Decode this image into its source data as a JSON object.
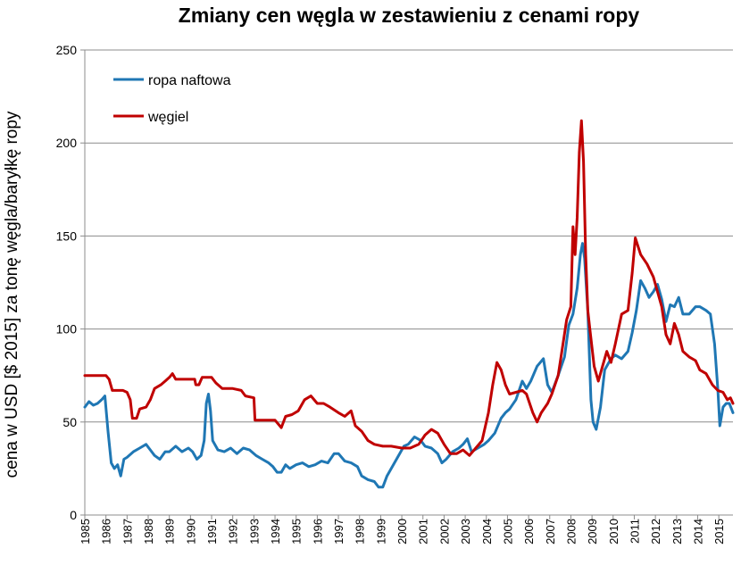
{
  "title": "Zmiany cen węgla w zestawieniu z cenami ropy",
  "chart_data": {
    "type": "line",
    "title": "Zmiany cen węgla w zestawieniu z cenami ropy",
    "xlabel": "",
    "ylabel": "cena  w USD [$ 2015]  za tonę węgla/baryłkę ropy",
    "xlim": [
      1985.0,
      2015.67
    ],
    "ylim": [
      0,
      250
    ],
    "yticks": [
      0,
      50,
      100,
      150,
      200,
      250
    ],
    "xticks": [
      "1985",
      "1986",
      "1987",
      "1988",
      "1989",
      "1990",
      "1991",
      "1992",
      "1993",
      "1994",
      "1995",
      "1996",
      "1997",
      "1998",
      "1999",
      "2000",
      "2001",
      "2002",
      "2003",
      "2004",
      "2005",
      "2006",
      "2007",
      "2008",
      "2009",
      "2010",
      "2011",
      "2012",
      "2013",
      "2014",
      "2015"
    ],
    "grid": "horizontal",
    "legend_position": "top-left",
    "series": [
      {
        "name": "ropa naftowa",
        "color": "#1f77b4",
        "points": [
          [
            1985.0,
            58
          ],
          [
            1985.2,
            61
          ],
          [
            1985.4,
            59
          ],
          [
            1985.6,
            60
          ],
          [
            1985.8,
            62
          ],
          [
            1985.95,
            64
          ],
          [
            1986.1,
            45
          ],
          [
            1986.25,
            28
          ],
          [
            1986.4,
            25
          ],
          [
            1986.55,
            27
          ],
          [
            1986.7,
            21
          ],
          [
            1986.85,
            30
          ],
          [
            1987.0,
            31
          ],
          [
            1987.3,
            34
          ],
          [
            1987.6,
            36
          ],
          [
            1987.9,
            38
          ],
          [
            1988.1,
            35
          ],
          [
            1988.3,
            32
          ],
          [
            1988.55,
            30
          ],
          [
            1988.8,
            34
          ],
          [
            1989.0,
            34
          ],
          [
            1989.3,
            37
          ],
          [
            1989.6,
            34
          ],
          [
            1989.9,
            36
          ],
          [
            1990.1,
            34
          ],
          [
            1990.3,
            30
          ],
          [
            1990.5,
            32
          ],
          [
            1990.65,
            40
          ],
          [
            1990.75,
            60
          ],
          [
            1990.85,
            65
          ],
          [
            1990.95,
            56
          ],
          [
            1991.05,
            40
          ],
          [
            1991.3,
            35
          ],
          [
            1991.6,
            34
          ],
          [
            1991.9,
            36
          ],
          [
            1992.2,
            33
          ],
          [
            1992.5,
            36
          ],
          [
            1992.8,
            35
          ],
          [
            1993.1,
            32
          ],
          [
            1993.4,
            30
          ],
          [
            1993.7,
            28
          ],
          [
            1993.9,
            26
          ],
          [
            1994.1,
            23
          ],
          [
            1994.3,
            23
          ],
          [
            1994.5,
            27
          ],
          [
            1994.7,
            25
          ],
          [
            1995.0,
            27
          ],
          [
            1995.3,
            28
          ],
          [
            1995.6,
            26
          ],
          [
            1995.9,
            27
          ],
          [
            1996.2,
            29
          ],
          [
            1996.5,
            28
          ],
          [
            1996.8,
            33
          ],
          [
            1997.0,
            33
          ],
          [
            1997.3,
            29
          ],
          [
            1997.6,
            28
          ],
          [
            1997.9,
            26
          ],
          [
            1998.1,
            21
          ],
          [
            1998.4,
            19
          ],
          [
            1998.7,
            18
          ],
          [
            1998.9,
            15
          ],
          [
            1999.1,
            15
          ],
          [
            1999.3,
            21
          ],
          [
            1999.6,
            27
          ],
          [
            1999.9,
            33
          ],
          [
            2000.1,
            37
          ],
          [
            2000.3,
            38
          ],
          [
            2000.6,
            42
          ],
          [
            2000.9,
            40
          ],
          [
            2001.1,
            37
          ],
          [
            2001.4,
            36
          ],
          [
            2001.7,
            33
          ],
          [
            2001.9,
            28
          ],
          [
            2002.1,
            30
          ],
          [
            2002.4,
            34
          ],
          [
            2002.7,
            36
          ],
          [
            2002.9,
            38
          ],
          [
            2003.1,
            41
          ],
          [
            2003.3,
            34
          ],
          [
            2003.6,
            36
          ],
          [
            2003.9,
            38
          ],
          [
            2004.1,
            40
          ],
          [
            2004.4,
            44
          ],
          [
            2004.7,
            52
          ],
          [
            2004.9,
            55
          ],
          [
            2005.1,
            57
          ],
          [
            2005.4,
            62
          ],
          [
            2005.7,
            72
          ],
          [
            2005.9,
            68
          ],
          [
            2006.1,
            72
          ],
          [
            2006.4,
            80
          ],
          [
            2006.7,
            84
          ],
          [
            2006.9,
            70
          ],
          [
            2007.1,
            66
          ],
          [
            2007.4,
            75
          ],
          [
            2007.7,
            85
          ],
          [
            2007.9,
            102
          ],
          [
            2008.1,
            108
          ],
          [
            2008.3,
            122
          ],
          [
            2008.45,
            140
          ],
          [
            2008.55,
            146
          ],
          [
            2008.65,
            138
          ],
          [
            2008.8,
            110
          ],
          [
            2008.95,
            62
          ],
          [
            2009.05,
            50
          ],
          [
            2009.2,
            46
          ],
          [
            2009.4,
            58
          ],
          [
            2009.6,
            78
          ],
          [
            2009.9,
            84
          ],
          [
            2010.1,
            86
          ],
          [
            2010.4,
            84
          ],
          [
            2010.7,
            88
          ],
          [
            2010.9,
            98
          ],
          [
            2011.1,
            110
          ],
          [
            2011.3,
            126
          ],
          [
            2011.5,
            122
          ],
          [
            2011.7,
            117
          ],
          [
            2011.9,
            120
          ],
          [
            2012.1,
            124
          ],
          [
            2012.3,
            116
          ],
          [
            2012.5,
            104
          ],
          [
            2012.7,
            113
          ],
          [
            2012.9,
            112
          ],
          [
            2013.1,
            117
          ],
          [
            2013.3,
            108
          ],
          [
            2013.6,
            108
          ],
          [
            2013.9,
            112
          ],
          [
            2014.1,
            112
          ],
          [
            2014.4,
            110
          ],
          [
            2014.6,
            108
          ],
          [
            2014.8,
            92
          ],
          [
            2014.95,
            68
          ],
          [
            2015.05,
            48
          ],
          [
            2015.2,
            58
          ],
          [
            2015.35,
            60
          ],
          [
            2015.5,
            60
          ],
          [
            2015.67,
            55
          ]
        ]
      },
      {
        "name": "węgiel",
        "color": "#c00000",
        "points": [
          [
            1985.0,
            75
          ],
          [
            1985.5,
            75
          ],
          [
            1986.0,
            75
          ],
          [
            1986.15,
            73
          ],
          [
            1986.3,
            67
          ],
          [
            1986.8,
            67
          ],
          [
            1987.0,
            66
          ],
          [
            1987.15,
            62
          ],
          [
            1987.25,
            52
          ],
          [
            1987.45,
            52
          ],
          [
            1987.6,
            57
          ],
          [
            1987.9,
            58
          ],
          [
            1988.1,
            62
          ],
          [
            1988.3,
            68
          ],
          [
            1988.6,
            70
          ],
          [
            1988.8,
            72
          ],
          [
            1989.0,
            74
          ],
          [
            1989.15,
            76
          ],
          [
            1989.3,
            73
          ],
          [
            1989.6,
            73
          ],
          [
            1990.0,
            73
          ],
          [
            1990.2,
            73
          ],
          [
            1990.25,
            70
          ],
          [
            1990.4,
            70
          ],
          [
            1990.55,
            74
          ],
          [
            1991.0,
            74
          ],
          [
            1991.2,
            71
          ],
          [
            1991.5,
            68
          ],
          [
            1992.0,
            68
          ],
          [
            1992.4,
            67
          ],
          [
            1992.6,
            64
          ],
          [
            1993.0,
            63
          ],
          [
            1993.05,
            51
          ],
          [
            1993.5,
            51
          ],
          [
            1994.0,
            51
          ],
          [
            1994.3,
            47
          ],
          [
            1994.5,
            53
          ],
          [
            1994.8,
            54
          ],
          [
            1995.1,
            56
          ],
          [
            1995.4,
            62
          ],
          [
            1995.7,
            64
          ],
          [
            1996.0,
            60
          ],
          [
            1996.3,
            60
          ],
          [
            1996.6,
            58
          ],
          [
            1997.0,
            55
          ],
          [
            1997.3,
            53
          ],
          [
            1997.6,
            56
          ],
          [
            1997.8,
            48
          ],
          [
            1998.1,
            45
          ],
          [
            1998.4,
            40
          ],
          [
            1998.7,
            38
          ],
          [
            1999.1,
            37
          ],
          [
            1999.5,
            37
          ],
          [
            2000.0,
            36
          ],
          [
            2000.4,
            36
          ],
          [
            2000.8,
            38
          ],
          [
            2001.1,
            43
          ],
          [
            2001.4,
            46
          ],
          [
            2001.7,
            44
          ],
          [
            2002.0,
            38
          ],
          [
            2002.3,
            33
          ],
          [
            2002.6,
            33
          ],
          [
            2002.9,
            35
          ],
          [
            2003.2,
            32
          ],
          [
            2003.5,
            36
          ],
          [
            2003.8,
            40
          ],
          [
            2004.1,
            55
          ],
          [
            2004.3,
            70
          ],
          [
            2004.5,
            82
          ],
          [
            2004.7,
            78
          ],
          [
            2004.9,
            70
          ],
          [
            2005.1,
            65
          ],
          [
            2005.4,
            66
          ],
          [
            2005.7,
            67
          ],
          [
            2005.9,
            65
          ],
          [
            2006.2,
            55
          ],
          [
            2006.4,
            50
          ],
          [
            2006.6,
            55
          ],
          [
            2006.9,
            60
          ],
          [
            2007.1,
            65
          ],
          [
            2007.4,
            75
          ],
          [
            2007.6,
            90
          ],
          [
            2007.8,
            105
          ],
          [
            2008.0,
            112
          ],
          [
            2008.1,
            155
          ],
          [
            2008.2,
            140
          ],
          [
            2008.3,
            160
          ],
          [
            2008.4,
            195
          ],
          [
            2008.5,
            212
          ],
          [
            2008.6,
            190
          ],
          [
            2008.7,
            140
          ],
          [
            2008.8,
            110
          ],
          [
            2008.9,
            100
          ],
          [
            2009.1,
            80
          ],
          [
            2009.3,
            72
          ],
          [
            2009.5,
            80
          ],
          [
            2009.7,
            88
          ],
          [
            2009.9,
            82
          ],
          [
            2010.1,
            92
          ],
          [
            2010.4,
            108
          ],
          [
            2010.7,
            110
          ],
          [
            2010.9,
            130
          ],
          [
            2011.05,
            149
          ],
          [
            2011.3,
            140
          ],
          [
            2011.6,
            135
          ],
          [
            2011.9,
            128
          ],
          [
            2012.1,
            120
          ],
          [
            2012.3,
            112
          ],
          [
            2012.5,
            97
          ],
          [
            2012.7,
            92
          ],
          [
            2012.9,
            103
          ],
          [
            2013.1,
            97
          ],
          [
            2013.3,
            88
          ],
          [
            2013.6,
            85
          ],
          [
            2013.9,
            83
          ],
          [
            2014.1,
            78
          ],
          [
            2014.4,
            76
          ],
          [
            2014.7,
            70
          ],
          [
            2014.95,
            67
          ],
          [
            2015.2,
            66
          ],
          [
            2015.4,
            62
          ],
          [
            2015.55,
            63
          ],
          [
            2015.67,
            60
          ]
        ]
      }
    ]
  }
}
